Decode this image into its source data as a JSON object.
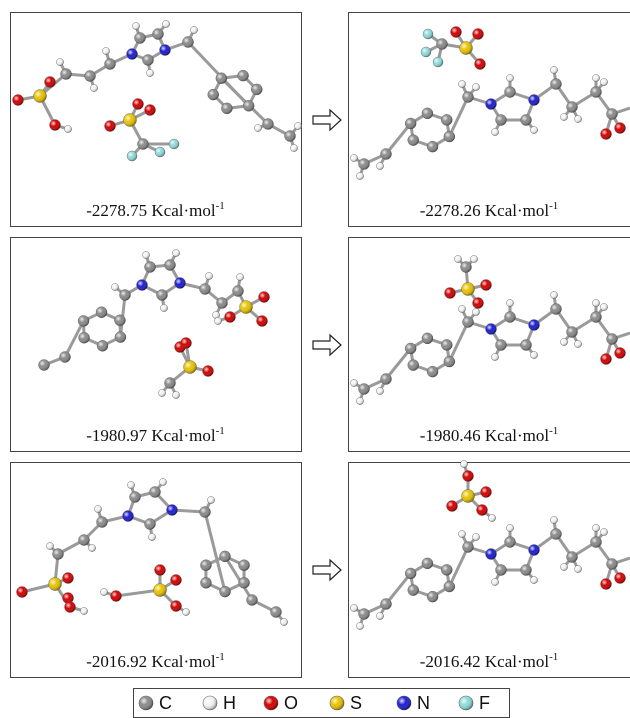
{
  "panels": [
    {
      "energy": "-2278.75 Kcal·mol",
      "exponent": "-1"
    },
    {
      "energy": "-2278.26 Kcal·mol",
      "exponent": "-1"
    },
    {
      "energy": "-1980.97 Kcal·mol",
      "exponent": "-1"
    },
    {
      "energy": "-1980.46 Kcal·mol",
      "exponent": "-1"
    },
    {
      "energy": "-2016.92 Kcal·mol",
      "exponent": "-1"
    },
    {
      "energy": "-2016.42 Kcal·mol",
      "exponent": "-1"
    }
  ],
  "legend": [
    {
      "symbol": "C",
      "color": "#8a8a8a"
    },
    {
      "symbol": "H",
      "color": "#f2f2f2"
    },
    {
      "symbol": "O",
      "color": "#d40000"
    },
    {
      "symbol": "S",
      "color": "#e8c200"
    },
    {
      "symbol": "N",
      "color": "#1c1cd0"
    },
    {
      "symbol": "F",
      "color": "#8fdada"
    }
  ]
}
